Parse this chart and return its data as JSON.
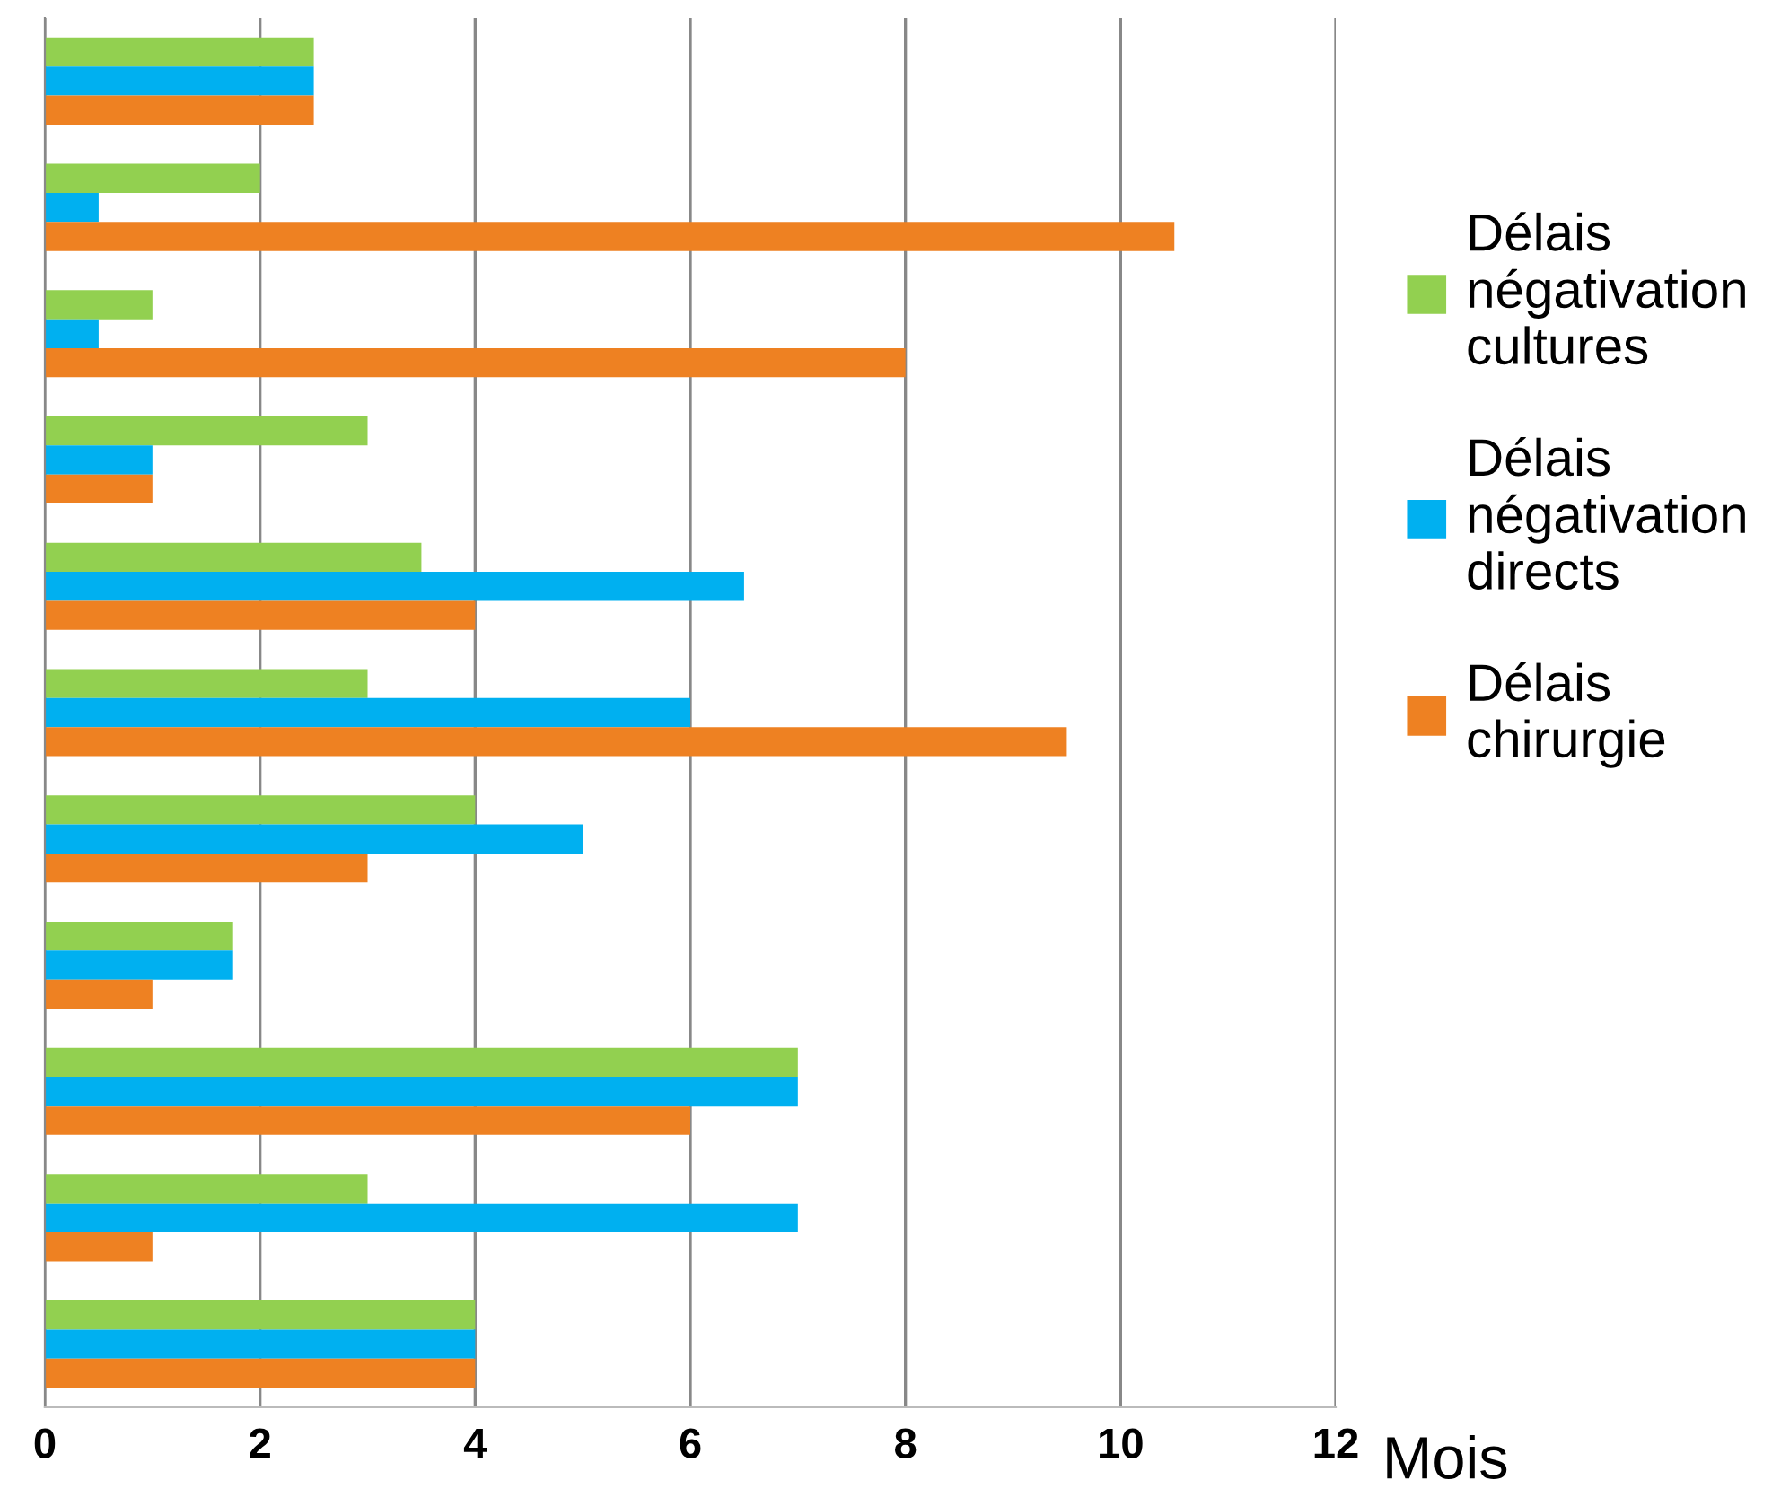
{
  "chart_data": {
    "type": "bar",
    "orientation": "horizontal",
    "xlabel": "Mois",
    "categories": [
      null,
      null,
      null,
      null,
      null,
      null,
      null,
      null,
      null,
      null,
      null
    ],
    "series": [
      {
        "name": "Délais négativation cultures",
        "color": "#92d050",
        "values": [
          2.5,
          2,
          1,
          3,
          3.5,
          3,
          4,
          1.75,
          7,
          3,
          4
        ]
      },
      {
        "name": "Délais négativation directs",
        "color": "#00b0f0",
        "values": [
          2.5,
          0.5,
          0.5,
          1,
          6.5,
          6,
          5,
          1.75,
          7,
          7,
          4
        ]
      },
      {
        "name": "Délais chirurgie",
        "color": "#ee8122",
        "values": [
          2.5,
          10.5,
          8,
          1,
          4,
          9.5,
          3,
          1,
          6,
          1,
          4
        ]
      }
    ],
    "xlim": [
      0,
      12
    ],
    "xticks": [
      0,
      2,
      4,
      6,
      8,
      10,
      12
    ],
    "grid": "x",
    "legend": "right",
    "tick_labels": "x"
  }
}
